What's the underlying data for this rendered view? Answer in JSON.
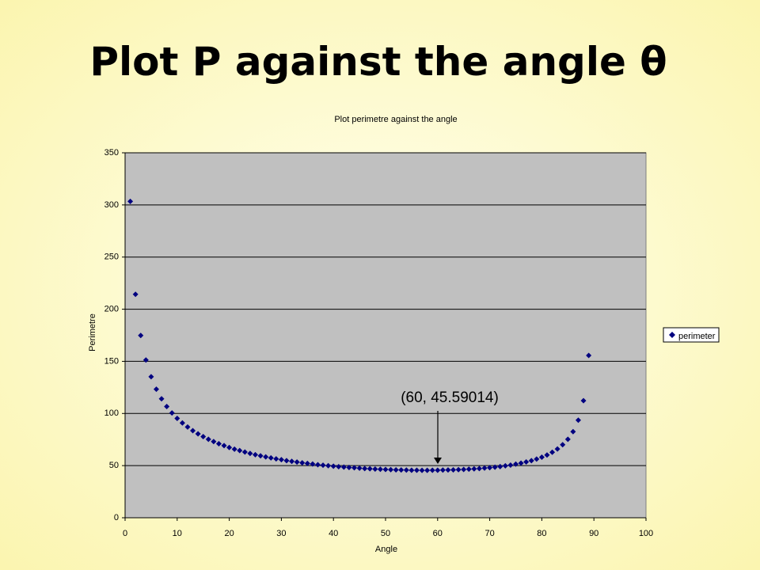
{
  "slide_title": "Plot P against the angle θ",
  "chart_data": {
    "type": "scatter",
    "title": "Plot perimetre against the angle",
    "x_label": "Angle",
    "y_label": "Perimetre",
    "x": [
      1,
      2,
      3,
      4,
      5,
      6,
      7,
      8,
      9,
      10,
      11,
      12,
      13,
      14,
      15,
      16,
      17,
      18,
      19,
      20,
      21,
      22,
      23,
      24,
      25,
      26,
      27,
      28,
      29,
      30,
      31,
      32,
      33,
      34,
      35,
      36,
      37,
      38,
      39,
      40,
      41,
      42,
      43,
      44,
      45,
      46,
      47,
      48,
      49,
      50,
      51,
      52,
      53,
      54,
      55,
      56,
      57,
      58,
      59,
      60,
      61,
      62,
      63,
      64,
      65,
      66,
      67,
      68,
      69,
      70,
      71,
      72,
      73,
      74,
      75,
      76,
      77,
      78,
      79,
      80,
      81,
      82,
      83,
      84,
      85,
      86,
      87,
      88,
      89
    ],
    "series": [
      {
        "name": "perimeter",
        "color": "#000080",
        "values": [
          303.4,
          214.3,
          174.8,
          151.3,
          135.2,
          123.3,
          114.1,
          106.7,
          100.5,
          95.3,
          90.9,
          87.0,
          83.5,
          80.5,
          77.8,
          75.3,
          73.1,
          71.0,
          69.2,
          67.4,
          65.8,
          64.4,
          63.0,
          61.7,
          60.5,
          59.4,
          58.4,
          57.4,
          56.5,
          55.7,
          54.8,
          54.1,
          53.4,
          52.7,
          52.1,
          51.5,
          50.9,
          50.4,
          49.9,
          49.4,
          49.0,
          48.6,
          48.2,
          47.9,
          47.5,
          47.2,
          47.0,
          46.7,
          46.5,
          46.3,
          46.1,
          45.9,
          45.8,
          45.7,
          45.6,
          45.6,
          45.5,
          45.5,
          45.6,
          45.59014,
          45.7,
          45.8,
          45.9,
          46.1,
          46.3,
          46.6,
          46.9,
          47.2,
          47.6,
          48.0,
          48.5,
          49.1,
          49.8,
          50.5,
          51.4,
          52.4,
          53.5,
          54.8,
          56.3,
          58.1,
          60.2,
          62.8,
          66.0,
          70.0,
          75.3,
          82.6,
          93.6,
          112.3,
          155.6
        ]
      }
    ],
    "xlim": [
      0,
      100
    ],
    "xticks": [
      0,
      10,
      20,
      30,
      40,
      50,
      60,
      70,
      80,
      90,
      100
    ],
    "ylim": [
      0,
      350
    ],
    "yticks": [
      0,
      50,
      100,
      150,
      200,
      250,
      300,
      350
    ],
    "grid": true,
    "legend": "right",
    "annotation": "(60, 45.59014)"
  }
}
